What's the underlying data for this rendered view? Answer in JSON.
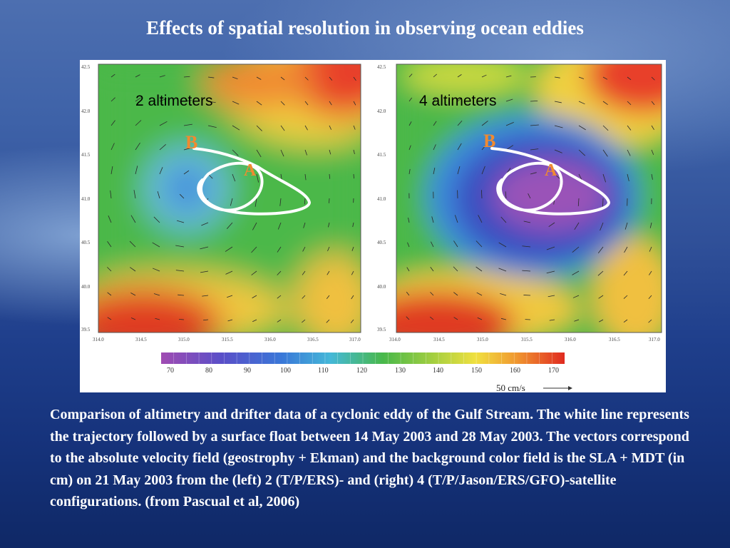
{
  "slide": {
    "title": "Effects of spatial resolution in observing ocean eddies",
    "caption": "Comparison of altimetry and drifter data of a cyclonic eddy of the Gulf Stream. The white line represents the trajectory followed by a surface float between 14 May 2003 and 28 May 2003. The vectors correspond to the absolute velocity field (geostrophy + Ekman) and the background color field is the SLA + MDT (in cm) on 21 May 2003 from the (left) 2 (T/P/ERS)- and (right) 4 (T/P/Jason/ERS/GFO)-satellite configurations. (from Pascual et al, 2006)"
  },
  "figure": {
    "panels": [
      {
        "label": "2 altimeters",
        "marker_b": "B",
        "marker_a": "A"
      },
      {
        "label": "4 altimeters",
        "marker_b": "B",
        "marker_a": "A"
      }
    ],
    "y_ticks": [
      "42.5",
      "42.0",
      "41.5",
      "41.0",
      "40.5",
      "40.0",
      "39.5"
    ],
    "x_ticks": [
      "314.0",
      "314.5",
      "315.0",
      "315.5",
      "316.0",
      "316.5",
      "317.0"
    ],
    "colorbar_ticks": [
      "70",
      "80",
      "90",
      "100",
      "110",
      "120",
      "130",
      "140",
      "150",
      "160",
      "170"
    ],
    "scale_label": "50 cm/s",
    "colors": {
      "purple": "#9b4fb0",
      "blue": "#3a5fd0",
      "cyan": "#3fa8e0",
      "green": "#4ab848",
      "yellow": "#f0d84a",
      "orange": "#f08a2a",
      "red": "#e02a20"
    }
  }
}
